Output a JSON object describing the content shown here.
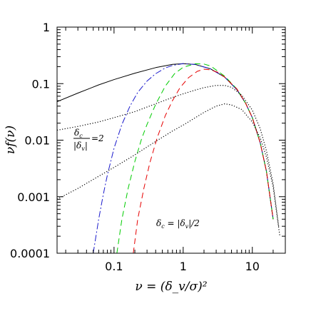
{
  "chart_data": {
    "type": "line",
    "title": "",
    "xlabel": "ν = (δ_v/σ)²",
    "ylabel": "νf(ν)",
    "x_scale": "log",
    "y_scale": "log",
    "xlim": [
      0.015,
      30
    ],
    "ylim": [
      0.0001,
      1
    ],
    "grid": false,
    "legend": "none",
    "x_ticks": [
      {
        "value": 0.1,
        "label": "0.1"
      },
      {
        "value": 1,
        "label": "1"
      },
      {
        "value": 10,
        "label": "10"
      }
    ],
    "y_ticks": [
      {
        "value": 0.0001,
        "label": "0.0001"
      },
      {
        "value": 0.001,
        "label": "0.001"
      },
      {
        "value": 0.01,
        "label": "0.01"
      },
      {
        "value": 0.1,
        "label": "0.1"
      },
      {
        "value": 1,
        "label": "1"
      }
    ],
    "annotations": [
      {
        "id": "ratio2",
        "numerator": "δ",
        "numerator_sub": "c",
        "denominator": "|δ",
        "denominator_sub": "v",
        "denominator_end": "|",
        "suffix": "=2"
      },
      {
        "id": "half",
        "parts": [
          "δ",
          "c",
          " = |δ",
          "v",
          "|/2"
        ]
      }
    ],
    "series": [
      {
        "style": "solid",
        "color": "#000000",
        "x": [
          0.015,
          0.03,
          0.06,
          0.1,
          0.2,
          0.4,
          0.7,
          1.0,
          1.5,
          2.5,
          4,
          6,
          8,
          10,
          13,
          16,
          20
        ],
        "y": [
          0.048,
          0.068,
          0.095,
          0.118,
          0.153,
          0.192,
          0.219,
          0.226,
          0.218,
          0.182,
          0.13,
          0.078,
          0.045,
          0.025,
          0.009,
          0.0028,
          0.0004
        ]
      },
      {
        "style": "dashdot",
        "color": "#1a1acc",
        "x": [
          0.05,
          0.06,
          0.07,
          0.08,
          0.1,
          0.13,
          0.17,
          0.22,
          0.3,
          0.4,
          0.55,
          0.7,
          1.0,
          1.5,
          2.5,
          4,
          6,
          8,
          10,
          13,
          16,
          20
        ],
        "y": [
          0.0001,
          0.0004,
          0.0011,
          0.0024,
          0.0072,
          0.019,
          0.04,
          0.07,
          0.111,
          0.15,
          0.189,
          0.21,
          0.226,
          0.218,
          0.182,
          0.13,
          0.078,
          0.045,
          0.025,
          0.009,
          0.0028,
          0.0004
        ]
      },
      {
        "style": "dashed",
        "color": "#00cc00",
        "x": [
          0.11,
          0.13,
          0.16,
          0.2,
          0.25,
          0.3,
          0.4,
          0.55,
          0.75,
          1.0,
          1.5,
          2.0,
          2.5,
          4,
          6,
          8,
          10,
          13,
          16,
          20
        ],
        "y": [
          0.0001,
          0.0004,
          0.0014,
          0.0042,
          0.0105,
          0.019,
          0.043,
          0.09,
          0.15,
          0.195,
          0.225,
          0.222,
          0.205,
          0.135,
          0.08,
          0.045,
          0.025,
          0.009,
          0.0028,
          0.0004
        ]
      },
      {
        "style": "dashed",
        "color": "#e60000",
        "x": [
          0.19,
          0.22,
          0.27,
          0.33,
          0.42,
          0.55,
          0.7,
          0.9,
          1.2,
          1.6,
          2.0,
          2.5,
          3.2,
          4,
          6,
          8,
          10,
          13,
          16,
          20
        ],
        "y": [
          0.0001,
          0.0004,
          0.0014,
          0.004,
          0.011,
          0.027,
          0.05,
          0.085,
          0.128,
          0.165,
          0.18,
          0.175,
          0.158,
          0.13,
          0.08,
          0.045,
          0.025,
          0.009,
          0.0028,
          0.0004
        ]
      },
      {
        "style": "dotted",
        "color": "#000000",
        "x": [
          0.015,
          0.03,
          0.06,
          0.1,
          0.2,
          0.4,
          0.7,
          1.0,
          1.5,
          2.0,
          3.0,
          4.0,
          5.0,
          7.0,
          10,
          13,
          16,
          20,
          24
        ],
        "y": [
          0.015,
          0.0175,
          0.021,
          0.025,
          0.032,
          0.044,
          0.057,
          0.066,
          0.077,
          0.085,
          0.093,
          0.093,
          0.086,
          0.063,
          0.034,
          0.016,
          0.0065,
          0.0017,
          0.0003
        ]
      },
      {
        "style": "dotted",
        "color": "#000000",
        "x": [
          0.015,
          0.03,
          0.06,
          0.1,
          0.2,
          0.4,
          0.7,
          1.0,
          1.5,
          2.0,
          3.0,
          4.0,
          5.0,
          7.0,
          10,
          13,
          16,
          20,
          25
        ],
        "y": [
          0.0009,
          0.0014,
          0.0023,
          0.0033,
          0.0055,
          0.0095,
          0.0145,
          0.0185,
          0.025,
          0.031,
          0.04,
          0.044,
          0.042,
          0.035,
          0.021,
          0.011,
          0.005,
          0.0015,
          0.0002
        ]
      }
    ]
  }
}
